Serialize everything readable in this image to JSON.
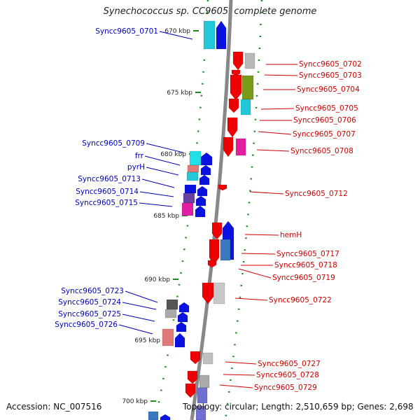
{
  "header": {
    "title": "Synechococcus sp. CC9605, complete genome"
  },
  "footer": {
    "accession": "Accession: NC_007516",
    "topology": "Topology: circular; Length: 2,510,659 bp; Genes: 2,698"
  },
  "colors": {
    "forward_labels": "#cc0000",
    "reverse_labels": "#0000bb",
    "backbone": "#888888",
    "tick_dots": "#228822"
  },
  "scale_labels": [
    "670 kbp",
    "675 kbp",
    "680 kbp",
    "685 kbp",
    "690 kbp",
    "695 kbp",
    "700 kbp"
  ],
  "genes_left": [
    "Syncc9605_0701",
    "Syncc9605_0709",
    "frr",
    "pyrH",
    "Syncc9605_0713",
    "Syncc9605_0714",
    "Syncc9605_0715",
    "Syncc9605_0723",
    "Syncc9605_0724",
    "Syncc9605_0725",
    "Syncc9605_0726"
  ],
  "genes_right": [
    "Syncc9605_0702",
    "Syncc9605_0703",
    "Syncc9605_0704",
    "Syncc9605_0705",
    "Syncc9605_0706",
    "Syncc9605_0707",
    "Syncc9605_0708",
    "Syncc9605_0712",
    "hemH",
    "Syncc9605_0717",
    "Syncc9605_0718",
    "Syncc9605_0719",
    "Syncc9605_0722",
    "Syncc9605_0727",
    "Syncc9605_0728",
    "Syncc9605_0729"
  ]
}
